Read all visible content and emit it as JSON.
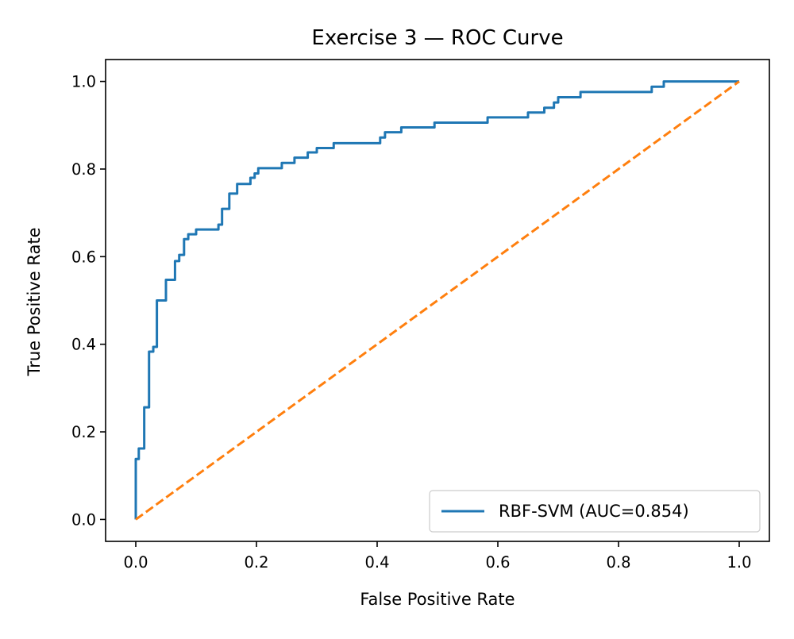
{
  "chart_data": {
    "type": "line",
    "title": "Exercise 3 — ROC Curve",
    "xlabel": "False Positive Rate",
    "ylabel": "True Positive Rate",
    "xlim": [
      -0.05,
      1.05
    ],
    "ylim": [
      -0.05,
      1.05
    ],
    "xticks": [
      "0.0",
      "0.2",
      "0.4",
      "0.6",
      "0.8",
      "1.0"
    ],
    "yticks": [
      "0.0",
      "0.2",
      "0.4",
      "0.6",
      "0.8",
      "1.0"
    ],
    "grid": false,
    "legend_position": "lower right",
    "series": [
      {
        "name": "RBF-SVM (AUC=0.854)",
        "color": "#1f77b4",
        "style": "solid",
        "step": true,
        "points": [
          [
            0.0,
            0.0
          ],
          [
            0.0,
            0.138
          ],
          [
            0.005,
            0.138
          ],
          [
            0.005,
            0.162
          ],
          [
            0.014,
            0.162
          ],
          [
            0.014,
            0.256
          ],
          [
            0.022,
            0.256
          ],
          [
            0.022,
            0.383
          ],
          [
            0.029,
            0.383
          ],
          [
            0.029,
            0.394
          ],
          [
            0.035,
            0.394
          ],
          [
            0.035,
            0.5
          ],
          [
            0.05,
            0.5
          ],
          [
            0.05,
            0.547
          ],
          [
            0.065,
            0.547
          ],
          [
            0.065,
            0.59
          ],
          [
            0.072,
            0.59
          ],
          [
            0.072,
            0.604
          ],
          [
            0.08,
            0.604
          ],
          [
            0.08,
            0.64
          ],
          [
            0.087,
            0.64
          ],
          [
            0.087,
            0.651
          ],
          [
            0.1,
            0.651
          ],
          [
            0.1,
            0.662
          ],
          [
            0.137,
            0.662
          ],
          [
            0.137,
            0.673
          ],
          [
            0.143,
            0.673
          ],
          [
            0.143,
            0.709
          ],
          [
            0.155,
            0.709
          ],
          [
            0.155,
            0.744
          ],
          [
            0.168,
            0.744
          ],
          [
            0.168,
            0.766
          ],
          [
            0.19,
            0.766
          ],
          [
            0.19,
            0.78
          ],
          [
            0.197,
            0.78
          ],
          [
            0.197,
            0.79
          ],
          [
            0.203,
            0.79
          ],
          [
            0.203,
            0.802
          ],
          [
            0.242,
            0.802
          ],
          [
            0.242,
            0.814
          ],
          [
            0.263,
            0.814
          ],
          [
            0.263,
            0.826
          ],
          [
            0.285,
            0.826
          ],
          [
            0.285,
            0.838
          ],
          [
            0.3,
            0.838
          ],
          [
            0.3,
            0.848
          ],
          [
            0.328,
            0.848
          ],
          [
            0.328,
            0.859
          ],
          [
            0.405,
            0.859
          ],
          [
            0.405,
            0.872
          ],
          [
            0.413,
            0.872
          ],
          [
            0.413,
            0.884
          ],
          [
            0.44,
            0.884
          ],
          [
            0.44,
            0.895
          ],
          [
            0.495,
            0.895
          ],
          [
            0.495,
            0.906
          ],
          [
            0.583,
            0.906
          ],
          [
            0.583,
            0.918
          ],
          [
            0.65,
            0.918
          ],
          [
            0.65,
            0.929
          ],
          [
            0.677,
            0.929
          ],
          [
            0.677,
            0.94
          ],
          [
            0.693,
            0.94
          ],
          [
            0.693,
            0.952
          ],
          [
            0.7,
            0.952
          ],
          [
            0.7,
            0.964
          ],
          [
            0.737,
            0.964
          ],
          [
            0.737,
            0.976
          ],
          [
            0.855,
            0.976
          ],
          [
            0.855,
            0.988
          ],
          [
            0.875,
            0.988
          ],
          [
            0.875,
            1.0
          ],
          [
            1.0,
            1.0
          ]
        ]
      },
      {
        "name": "",
        "color": "#ff7f0e",
        "style": "dashed",
        "step": false,
        "points": [
          [
            0.0,
            0.0
          ],
          [
            1.0,
            1.0
          ]
        ]
      }
    ]
  }
}
